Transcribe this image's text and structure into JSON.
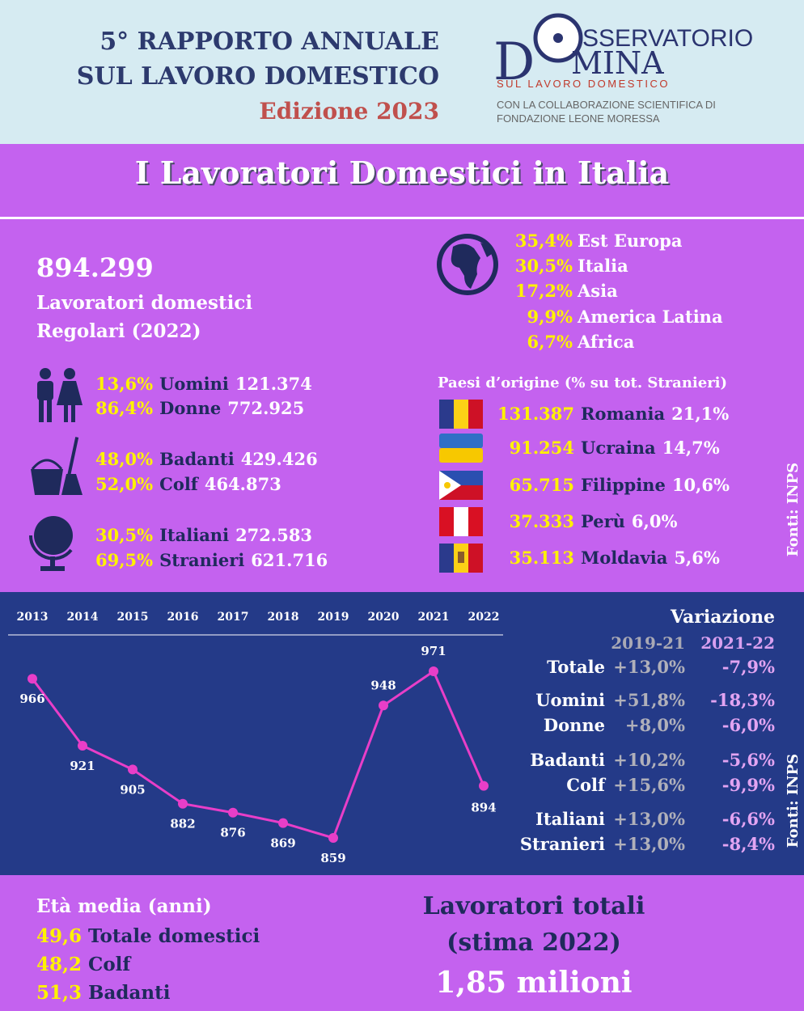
{
  "header": {
    "title_line1": "5° RAPPORTO ANNUALE",
    "title_line2": "SUL LAVORO DOMESTICO",
    "edition": "Edizione 2023"
  },
  "logo": {
    "d": "D",
    "top": "SSERVATORIO",
    "bottom": "MINA",
    "tagline": "SUL LAVORO DOMESTICO",
    "credit_line1": "CON LA COLLABORAZIONE SCIENTIFICA DI",
    "credit_line2": "FONDAZIONE LEONE MORESSA"
  },
  "section_title": "I Lavoratori Domestici in Italia",
  "summary": {
    "total": "894.299",
    "label_line1": "Lavoratori domestici",
    "label_line2": "Regolari (2022)"
  },
  "groups": [
    [
      {
        "pct": "13,6%",
        "label": "Uomini",
        "count": "121.374"
      },
      {
        "pct": "86,4%",
        "label": "Donne",
        "count": "772.925"
      }
    ],
    [
      {
        "pct": "48,0%",
        "label": "Badanti",
        "count": "429.426"
      },
      {
        "pct": "52,0%",
        "label": "Colf",
        "count": "464.873"
      }
    ],
    [
      {
        "pct": "30,5%",
        "label": "Italiani",
        "count": "272.583"
      },
      {
        "pct": "69,5%",
        "label": "Stranieri",
        "count": "621.716"
      }
    ]
  ],
  "regions": [
    {
      "pct": "35,4%",
      "name": "Est Europa"
    },
    {
      "pct": "30,5%",
      "name": "Italia"
    },
    {
      "pct": "17,2%",
      "name": "Asia"
    },
    {
      "pct": "9,9%",
      "name": "America Latina"
    },
    {
      "pct": "6,7%",
      "name": "Africa"
    }
  ],
  "countries_title": "Paesi d’origine (% su tot. Stranieri)",
  "countries": [
    {
      "count": "131.387",
      "name": "Romania",
      "pct": "21,1%"
    },
    {
      "count": "91.254",
      "name": "Ucraina",
      "pct": "14,7%"
    },
    {
      "count": "65.715",
      "name": "Filippine",
      "pct": "10,6%"
    },
    {
      "count": "37.333",
      "name": "Perù",
      "pct": "6,0%"
    },
    {
      "count": "35.113",
      "name": "Moldavia",
      "pct": "5,6%"
    }
  ],
  "sources": [
    "Fonti: INPS",
    "Fonti: INPS"
  ],
  "chart_data": {
    "type": "line",
    "categories": [
      "2013",
      "2014",
      "2015",
      "2016",
      "2017",
      "2018",
      "2019",
      "2020",
      "2021",
      "2022"
    ],
    "values": [
      966,
      921,
      905,
      882,
      876,
      869,
      859,
      948,
      971,
      894
    ],
    "color": "#e83ec8"
  },
  "variation": {
    "title": "Variazione",
    "periods": [
      "2019-21",
      "2021-22"
    ],
    "rows": [
      {
        "label": "Totale",
        "v1": "+13,0%",
        "v2": "-7,9%"
      },
      {
        "label": "Uomini",
        "v1": "+51,8%",
        "v2": "-18,3%"
      },
      {
        "label": "Donne",
        "v1": "+8,0%",
        "v2": "-6,0%"
      },
      {
        "label": "Badanti",
        "v1": "+10,2%",
        "v2": "-5,6%"
      },
      {
        "label": "Colf",
        "v1": "+15,6%",
        "v2": "-9,9%"
      },
      {
        "label": "Italiani",
        "v1": "+13,0%",
        "v2": "-6,6%"
      },
      {
        "label": "Stranieri",
        "v1": "+13,0%",
        "v2": "-8,4%"
      }
    ]
  },
  "age": {
    "title": "Età media (anni)",
    "rows": [
      {
        "value": "49,6",
        "label": "Totale domestici"
      },
      {
        "value": "48,2",
        "label": "Colf"
      },
      {
        "value": "51,3",
        "label": "Badanti"
      }
    ]
  },
  "total_estimate": {
    "line1": "Lavoratori totali",
    "line2": "(stima 2022)",
    "value": "1,85 milioni"
  }
}
